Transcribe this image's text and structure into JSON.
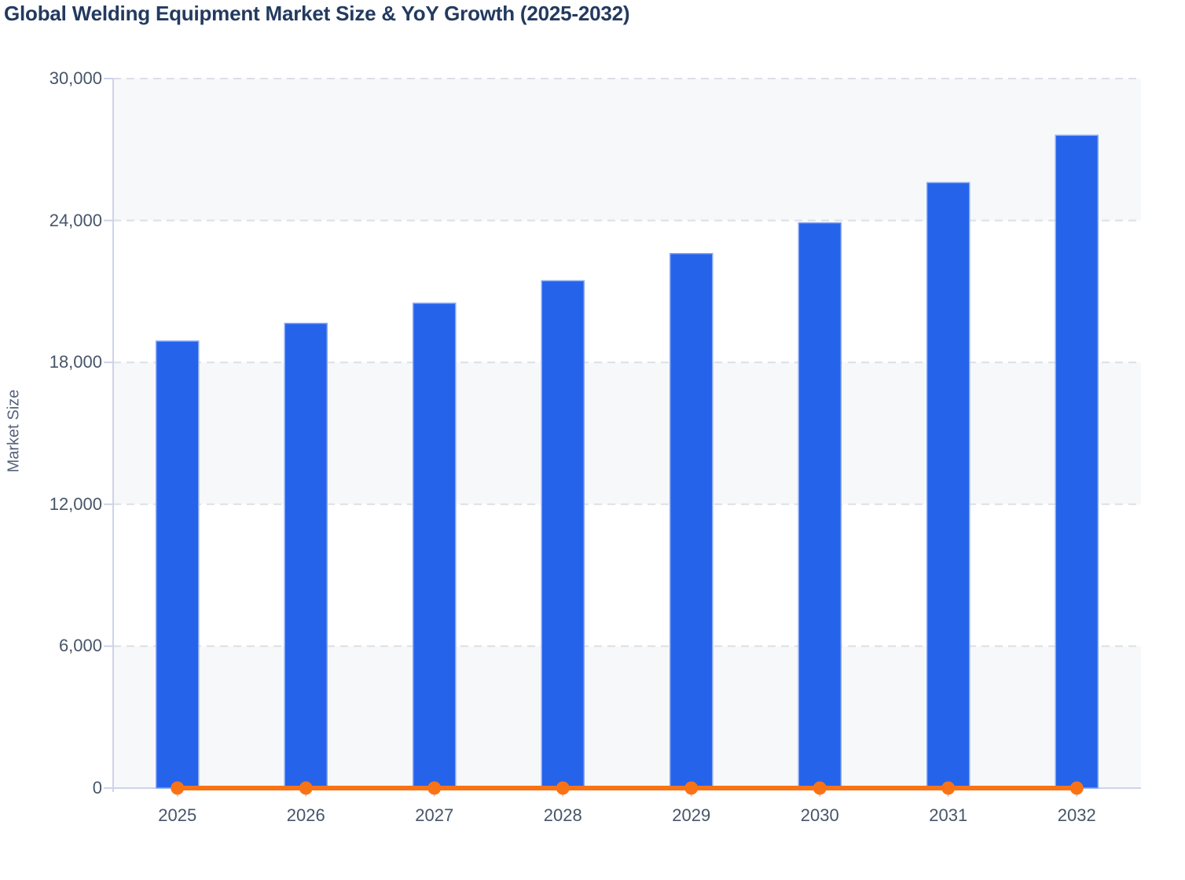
{
  "page": {
    "title": "Global Welding Equipment Market Size & YoY Growth (2025-2032)"
  },
  "chart_data": {
    "type": "bar",
    "title": "Global Welding Equipment Market Size & YoY Growth (2025-2032)",
    "categories": [
      "2025",
      "2026",
      "2027",
      "2028",
      "2029",
      "2030",
      "2031",
      "2032"
    ],
    "series": [
      {
        "name": "Market Size",
        "type": "bar",
        "color": "#2563eb",
        "values": [
          18900,
          19650,
          20500,
          21450,
          22600,
          23900,
          25600,
          27600
        ]
      },
      {
        "name": "YoY Growth",
        "type": "line",
        "color": "#f97316",
        "values": [
          0,
          0,
          0,
          0,
          0,
          0,
          0,
          0
        ]
      }
    ],
    "xlabel": "",
    "ylabel": "Market Size",
    "ylim": [
      0,
      30000
    ],
    "yticks": [
      0,
      6000,
      12000,
      18000,
      24000,
      30000
    ],
    "grid": "horizontal-dashed",
    "legend": "none"
  },
  "colors": {
    "bar": "#2563eb",
    "bar_border": "#86a8f3",
    "line": "#f97316",
    "title_text": "#233a5f",
    "axis_label": "#475569",
    "axis_name_text": "#55627a",
    "axis_line": "#ccd3ea",
    "gridline": "#dcdfe6",
    "band": "#f7f8fa",
    "background": "#ffffff"
  }
}
